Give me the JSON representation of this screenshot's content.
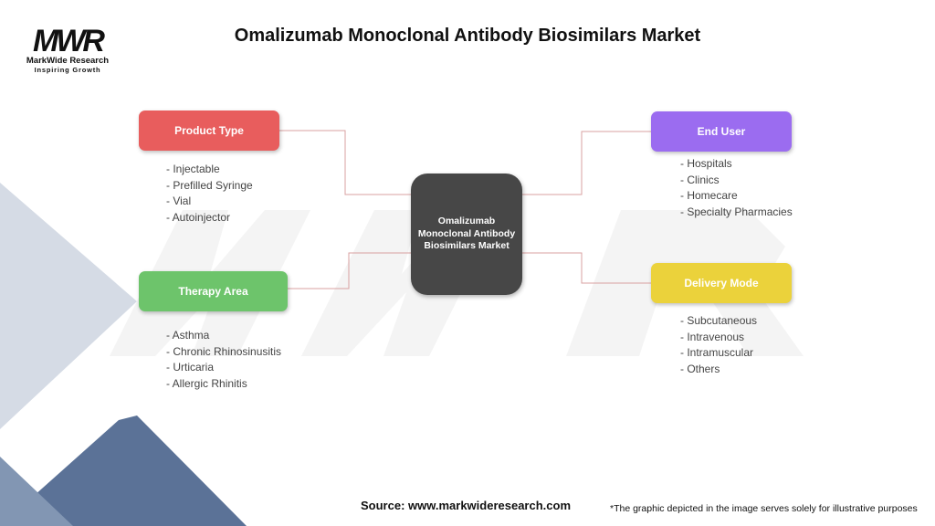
{
  "title": "Omalizumab Monoclonal Antibody Biosimilars Market",
  "logo": {
    "mark": "MWR",
    "name": "MarkWide Research",
    "tagline": "Inspiring Growth"
  },
  "center": {
    "label": "Omalizumab Monoclonal Antibody Biosimilars Market"
  },
  "categories": [
    {
      "label": "Product Type",
      "color": "#e85d5d",
      "items": [
        "- Injectable",
        "- Prefilled Syringe",
        "- Vial",
        "- Autoinjector"
      ]
    },
    {
      "label": "Therapy Area",
      "color": "#6dc46b",
      "items": [
        "- Asthma",
        "- Chronic Rhinosinusitis",
        "- Urticaria",
        "- Allergic Rhinitis"
      ]
    },
    {
      "label": "End User",
      "color": "#9b6cf0",
      "items": [
        "- Hospitals",
        "- Clinics",
        "- Homecare",
        "- Specialty Pharmacies"
      ]
    },
    {
      "label": "Delivery Mode",
      "color": "#ebd23b",
      "items": [
        "- Subcutaneous",
        "- Intravenous",
        "- Intramuscular",
        "- Others"
      ]
    }
  ],
  "connector_color": "#d9a0a0",
  "footer": {
    "source": "Source: www.markwideresearch.com",
    "note": "*The graphic depicted in the image serves solely for illustrative purposes"
  }
}
